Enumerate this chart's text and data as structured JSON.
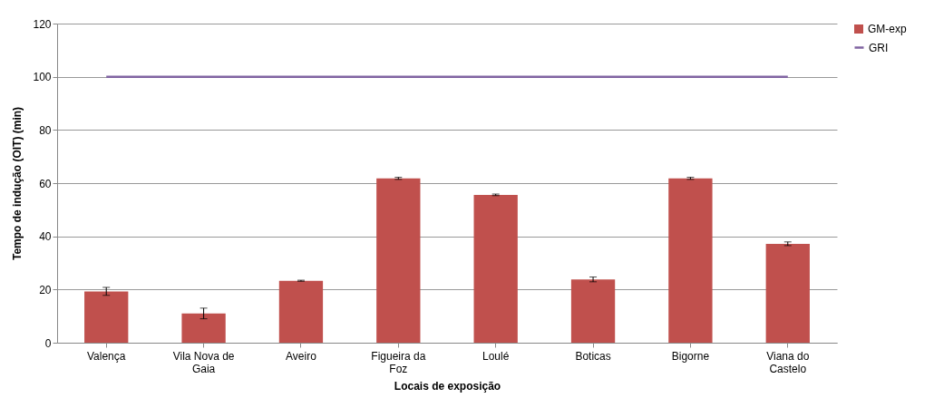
{
  "chart_data": {
    "type": "bar",
    "xlabel": "Locais de exposição",
    "ylabel": "Tempo de indução (OIT) (min)",
    "categories": [
      "Valença",
      "Vila Nova de Gaia",
      "Aveiro",
      "Figueira da Foz",
      "Loulé",
      "Boticas",
      "Bigorne",
      "Viana do Castelo"
    ],
    "series": [
      {
        "name": "GM-exp",
        "color": "#c0504d",
        "values": [
          19.3,
          11,
          23.3,
          61.8,
          55.6,
          23.8,
          61.8,
          37.2
        ],
        "errors": [
          1.5,
          2,
          0.2,
          0.4,
          0.3,
          0.9,
          0.4,
          0.7
        ]
      },
      {
        "name": "GRI",
        "type": "line",
        "color": "#8064a2",
        "values": [
          100,
          100,
          100,
          100,
          100,
          100,
          100,
          100
        ]
      }
    ],
    "ylim": [
      0,
      120
    ],
    "yticks": [
      0,
      20,
      40,
      60,
      80,
      100,
      120
    ],
    "grid": "y",
    "legend": "right"
  }
}
